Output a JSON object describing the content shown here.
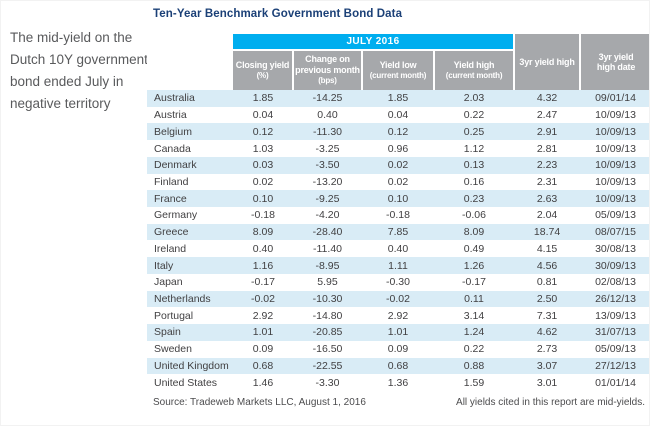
{
  "commentary": "The mid-yield on the Dutch 10Y government bond ended July in negative territory",
  "title": "Ten-Year Benchmark Government Bond Data",
  "footer": {
    "source": "Source: Tradeweb Markets LLC, August 1, 2016",
    "note": "All yields cited in this report are mid-yields."
  },
  "colors": {
    "accent_cyan": "#00aeef",
    "header_gray": "#a6a8ab",
    "row_stripe_blue": "#d9ecf6",
    "title_navy": "#1b4077",
    "body_text": "#414042"
  },
  "chart_data": {
    "type": "table",
    "title": "Ten-Year Benchmark Government Bond Data",
    "period": "JULY 2016",
    "columns": [
      {
        "label": "Closing yield",
        "sub": "(%)"
      },
      {
        "label": "Change on previous month",
        "sub": "(bps)"
      },
      {
        "label": "Yield low",
        "sub": "(current month)"
      },
      {
        "label": "Yield high",
        "sub": "(current month)"
      },
      {
        "label": "3yr yield high",
        "sub": ""
      },
      {
        "label": "3yr yield high date",
        "sub": ""
      }
    ],
    "rows": [
      {
        "country": "Australia",
        "closing_yield": "1.85",
        "change_bps": "-14.25",
        "yield_low": "1.85",
        "yield_high": "2.03",
        "three_yr_high": "4.32",
        "three_yr_high_date": "09/01/14"
      },
      {
        "country": "Austria",
        "closing_yield": "0.04",
        "change_bps": "0.40",
        "yield_low": "0.04",
        "yield_high": "0.22",
        "three_yr_high": "2.47",
        "three_yr_high_date": "10/09/13"
      },
      {
        "country": "Belgium",
        "closing_yield": "0.12",
        "change_bps": "-11.30",
        "yield_low": "0.12",
        "yield_high": "0.25",
        "three_yr_high": "2.91",
        "three_yr_high_date": "10/09/13"
      },
      {
        "country": "Canada",
        "closing_yield": "1.03",
        "change_bps": "-3.25",
        "yield_low": "0.96",
        "yield_high": "1.12",
        "three_yr_high": "2.81",
        "three_yr_high_date": "10/09/13"
      },
      {
        "country": "Denmark",
        "closing_yield": "0.03",
        "change_bps": "-3.50",
        "yield_low": "0.02",
        "yield_high": "0.13",
        "three_yr_high": "2.23",
        "three_yr_high_date": "10/09/13"
      },
      {
        "country": "Finland",
        "closing_yield": "0.02",
        "change_bps": "-13.20",
        "yield_low": "0.02",
        "yield_high": "0.16",
        "three_yr_high": "2.31",
        "three_yr_high_date": "10/09/13"
      },
      {
        "country": "France",
        "closing_yield": "0.10",
        "change_bps": "-9.25",
        "yield_low": "0.10",
        "yield_high": "0.23",
        "three_yr_high": "2.63",
        "three_yr_high_date": "10/09/13"
      },
      {
        "country": "Germany",
        "closing_yield": "-0.18",
        "change_bps": "-4.20",
        "yield_low": "-0.18",
        "yield_high": "-0.06",
        "three_yr_high": "2.04",
        "three_yr_high_date": "05/09/13"
      },
      {
        "country": "Greece",
        "closing_yield": "8.09",
        "change_bps": "-28.40",
        "yield_low": "7.85",
        "yield_high": "8.09",
        "three_yr_high": "18.74",
        "three_yr_high_date": "08/07/15"
      },
      {
        "country": "Ireland",
        "closing_yield": "0.40",
        "change_bps": "-11.40",
        "yield_low": "0.40",
        "yield_high": "0.49",
        "three_yr_high": "4.15",
        "three_yr_high_date": "30/08/13"
      },
      {
        "country": "Italy",
        "closing_yield": "1.16",
        "change_bps": "-8.95",
        "yield_low": "1.11",
        "yield_high": "1.26",
        "three_yr_high": "4.56",
        "three_yr_high_date": "30/09/13"
      },
      {
        "country": "Japan",
        "closing_yield": "-0.17",
        "change_bps": "5.95",
        "yield_low": "-0.30",
        "yield_high": "-0.17",
        "three_yr_high": "0.81",
        "three_yr_high_date": "02/08/13"
      },
      {
        "country": "Netherlands",
        "closing_yield": "-0.02",
        "change_bps": "-10.30",
        "yield_low": "-0.02",
        "yield_high": "0.11",
        "three_yr_high": "2.50",
        "three_yr_high_date": "26/12/13"
      },
      {
        "country": "Portugal",
        "closing_yield": "2.92",
        "change_bps": "-14.80",
        "yield_low": "2.92",
        "yield_high": "3.14",
        "three_yr_high": "7.31",
        "three_yr_high_date": "13/09/13"
      },
      {
        "country": "Spain",
        "closing_yield": "1.01",
        "change_bps": "-20.85",
        "yield_low": "1.01",
        "yield_high": "1.24",
        "three_yr_high": "4.62",
        "three_yr_high_date": "31/07/13"
      },
      {
        "country": "Sweden",
        "closing_yield": "0.09",
        "change_bps": "-16.50",
        "yield_low": "0.09",
        "yield_high": "0.22",
        "three_yr_high": "2.73",
        "three_yr_high_date": "05/09/13"
      },
      {
        "country": "United Kingdom",
        "closing_yield": "0.68",
        "change_bps": "-22.55",
        "yield_low": "0.68",
        "yield_high": "0.88",
        "three_yr_high": "3.07",
        "three_yr_high_date": "27/12/13"
      },
      {
        "country": "United States",
        "closing_yield": "1.46",
        "change_bps": "-3.30",
        "yield_low": "1.36",
        "yield_high": "1.59",
        "three_yr_high": "3.01",
        "three_yr_high_date": "01/01/14"
      }
    ]
  }
}
